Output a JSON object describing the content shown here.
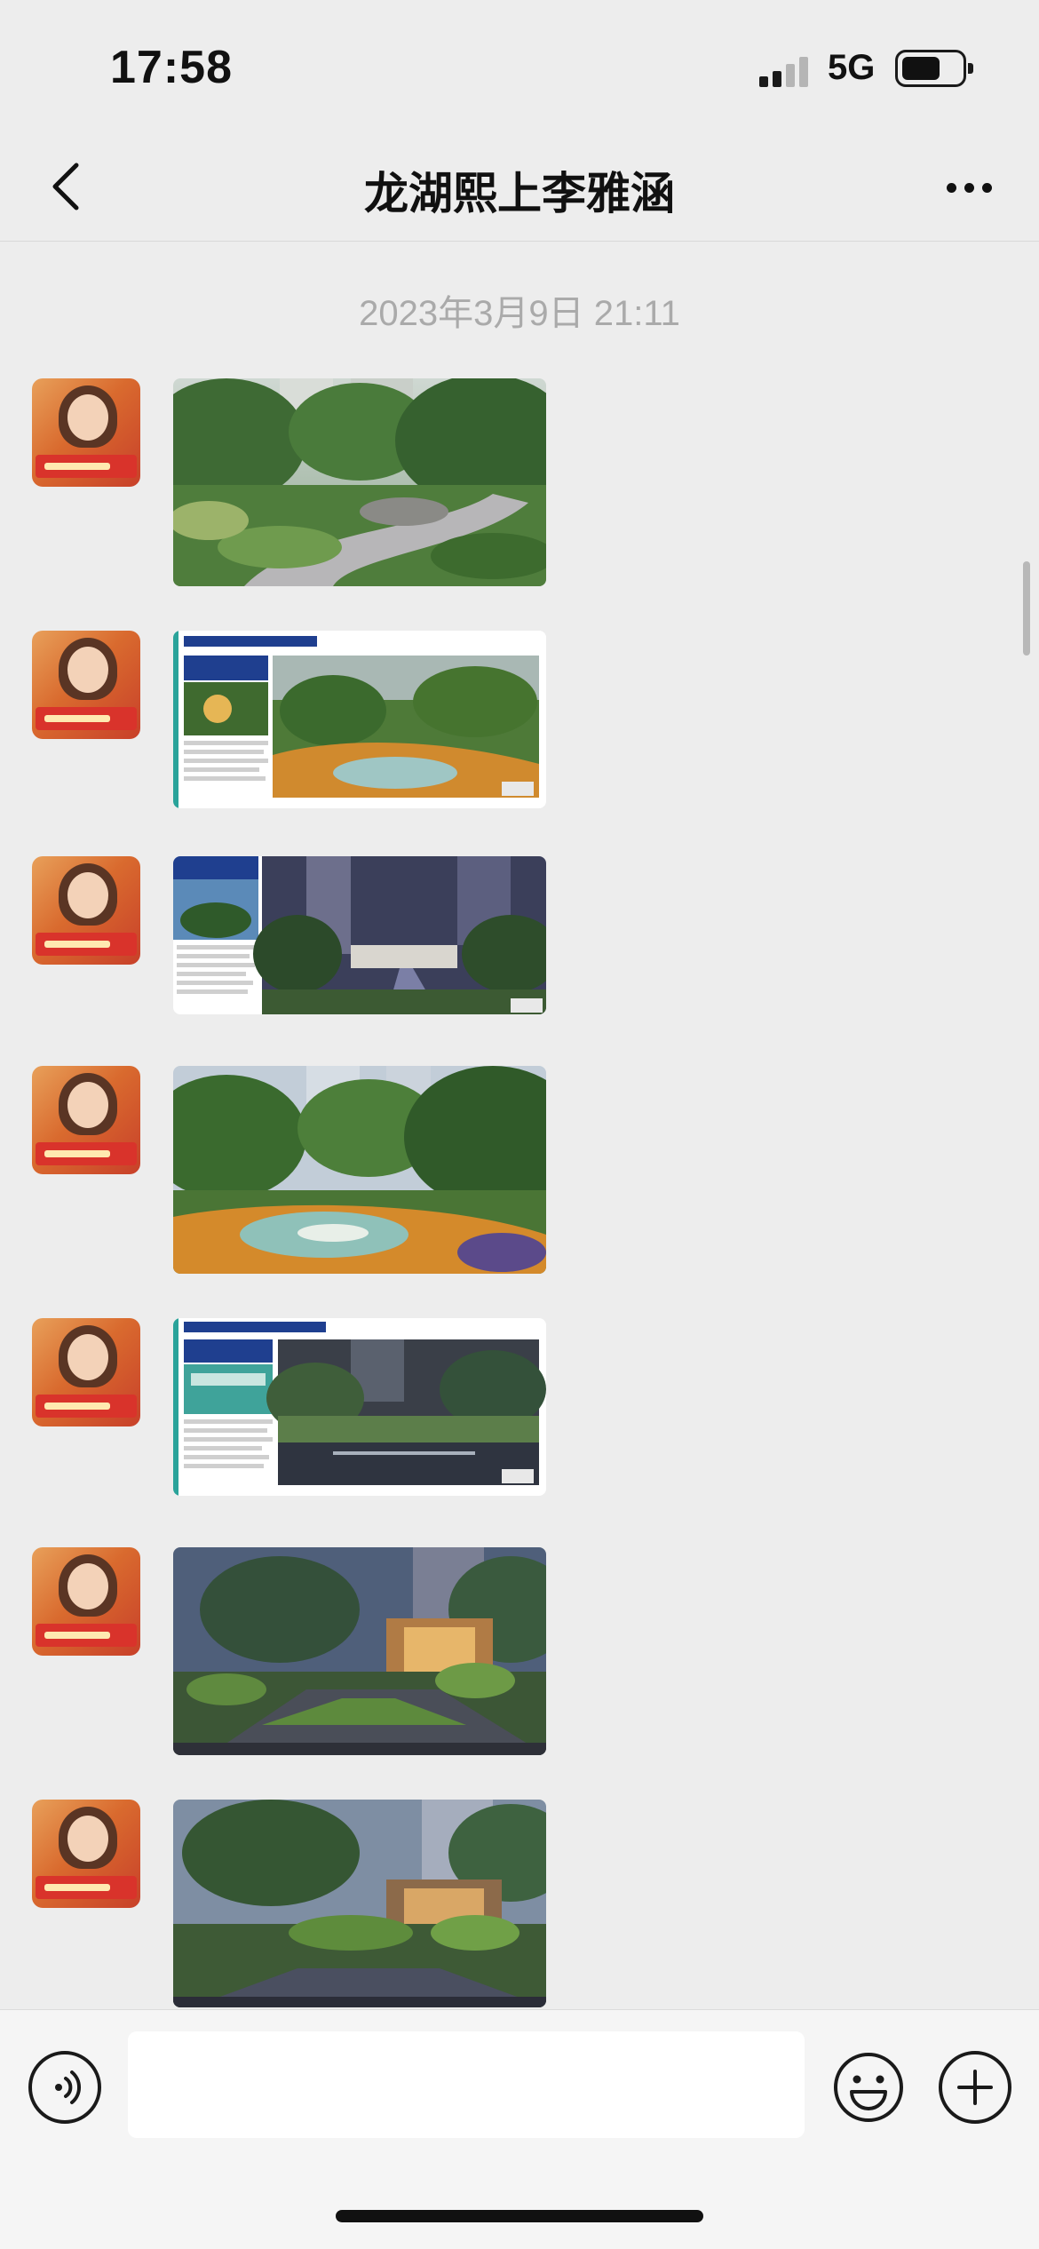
{
  "status_bar": {
    "time": "17:58",
    "network": "5G",
    "battery_level": 0.65
  },
  "nav": {
    "title": "龙湖熙上李雅涵",
    "back_icon": "chevron-left-icon",
    "more_icon": "more-dots-icon"
  },
  "chat": {
    "timestamp": "2023年3月9日 21:11",
    "messages": [
      {
        "type": "image",
        "content": "landscape-rendering"
      },
      {
        "type": "image",
        "content": "landscape-plan-slide"
      },
      {
        "type": "image",
        "content": "landscape-plan-slide"
      },
      {
        "type": "image",
        "content": "landscape-rendering"
      },
      {
        "type": "image",
        "content": "landscape-plan-slide"
      },
      {
        "type": "image",
        "content": "landscape-rendering"
      },
      {
        "type": "image",
        "content": "landscape-rendering"
      }
    ]
  },
  "input_bar": {
    "voice_icon": "voice-icon",
    "text_value": "",
    "emoji_icon": "emoji-icon",
    "add_icon": "plus-icon"
  },
  "colors": {
    "background": "#ededed",
    "input_bar": "#f5f5f5",
    "timestamp": "#aaaaaa"
  }
}
